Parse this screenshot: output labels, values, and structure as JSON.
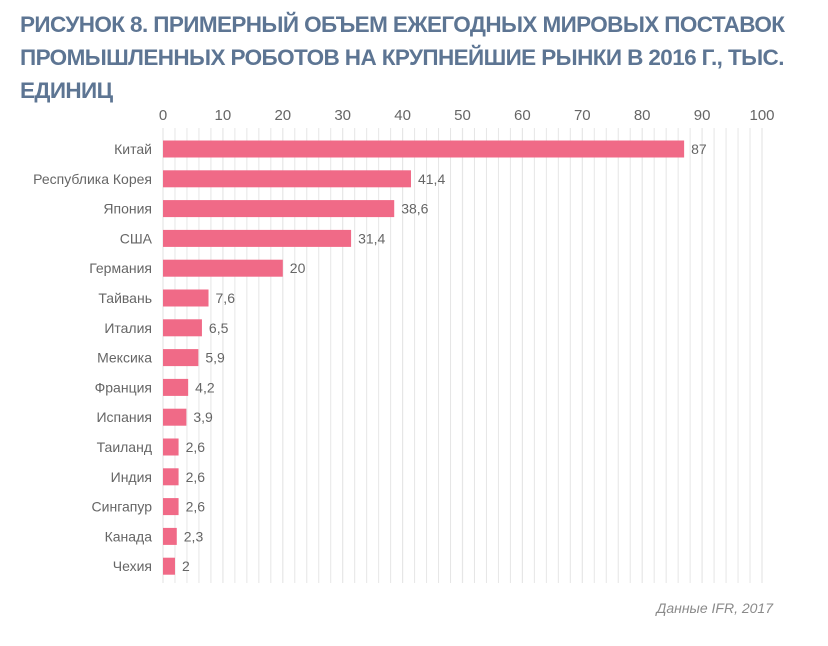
{
  "title": "РИСУНОК 8. ПРИМЕРНЫЙ ОБЪЕМ ЕЖЕГОДНЫХ МИРОВЫХ ПОСТАВОК ПРОМЫШЛЕННЫХ РОБОТОВ НА КРУПНЕЙШИЕ РЫНКИ В 2016 Г., ТЫС. ЕДИНИЦ",
  "source": "Данные IFR, 2017",
  "colors": {
    "bar": "#f06a87",
    "title": "#5d7593",
    "label": "#666666",
    "grid": "#e6e6e6"
  },
  "chart_data": {
    "type": "bar",
    "orientation": "horizontal",
    "categories": [
      "Китай",
      "Республика Корея",
      "Япония",
      "США",
      "Германия",
      "Тайвань",
      "Италия",
      "Мексика",
      "Франция",
      "Испания",
      "Таиланд",
      "Индия",
      "Сингапур",
      "Канада",
      "Чехия"
    ],
    "values": [
      87,
      41.4,
      38.6,
      31.4,
      20,
      7.6,
      6.5,
      5.9,
      4.2,
      3.9,
      2.6,
      2.6,
      2.6,
      2.3,
      2
    ],
    "value_labels": [
      "87",
      "41,4",
      "38,6",
      "31,4",
      "20",
      "7,6",
      "6,5",
      "5,9",
      "4,2",
      "3,9",
      "2,6",
      "2,6",
      "2,6",
      "2,3",
      "2"
    ],
    "xlim": [
      0,
      100
    ],
    "xticks": [
      0,
      10,
      20,
      30,
      40,
      50,
      60,
      70,
      80,
      90,
      100
    ],
    "x_axis_position": "top",
    "grid": true,
    "minor_grid_step": 2
  }
}
